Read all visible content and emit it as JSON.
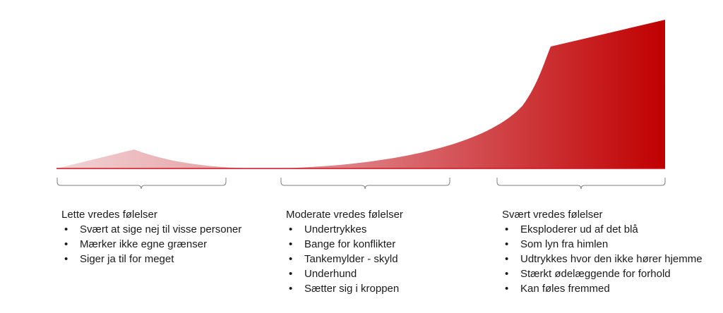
{
  "colors": {
    "curve_start": "#f2d4d6",
    "curve_end": "#c00000",
    "baseline": "#d0111e",
    "bracket": "#7f7f7f"
  },
  "groups": [
    {
      "heading": "Lette vredes følelser",
      "items": [
        "Svært at sige nej til visse personer",
        "Mærker ikke egne grænser",
        "Siger ja til for meget"
      ]
    },
    {
      "heading": "Moderate vredes følelser",
      "items": [
        "Undertrykkes",
        "Bange for konflikter",
        "Tankemylder - skyld",
        "Underhund",
        "Sætter sig i kroppen"
      ]
    },
    {
      "heading": "Svært vredes følelser",
      "items": [
        "Eksploderer ud af det blå",
        "Som lyn fra himlen",
        "Udtrykkes hvor den ikke hører hjemme",
        "Stærkt ødelæggende for forhold",
        "Kan føles fremmed"
      ]
    }
  ]
}
